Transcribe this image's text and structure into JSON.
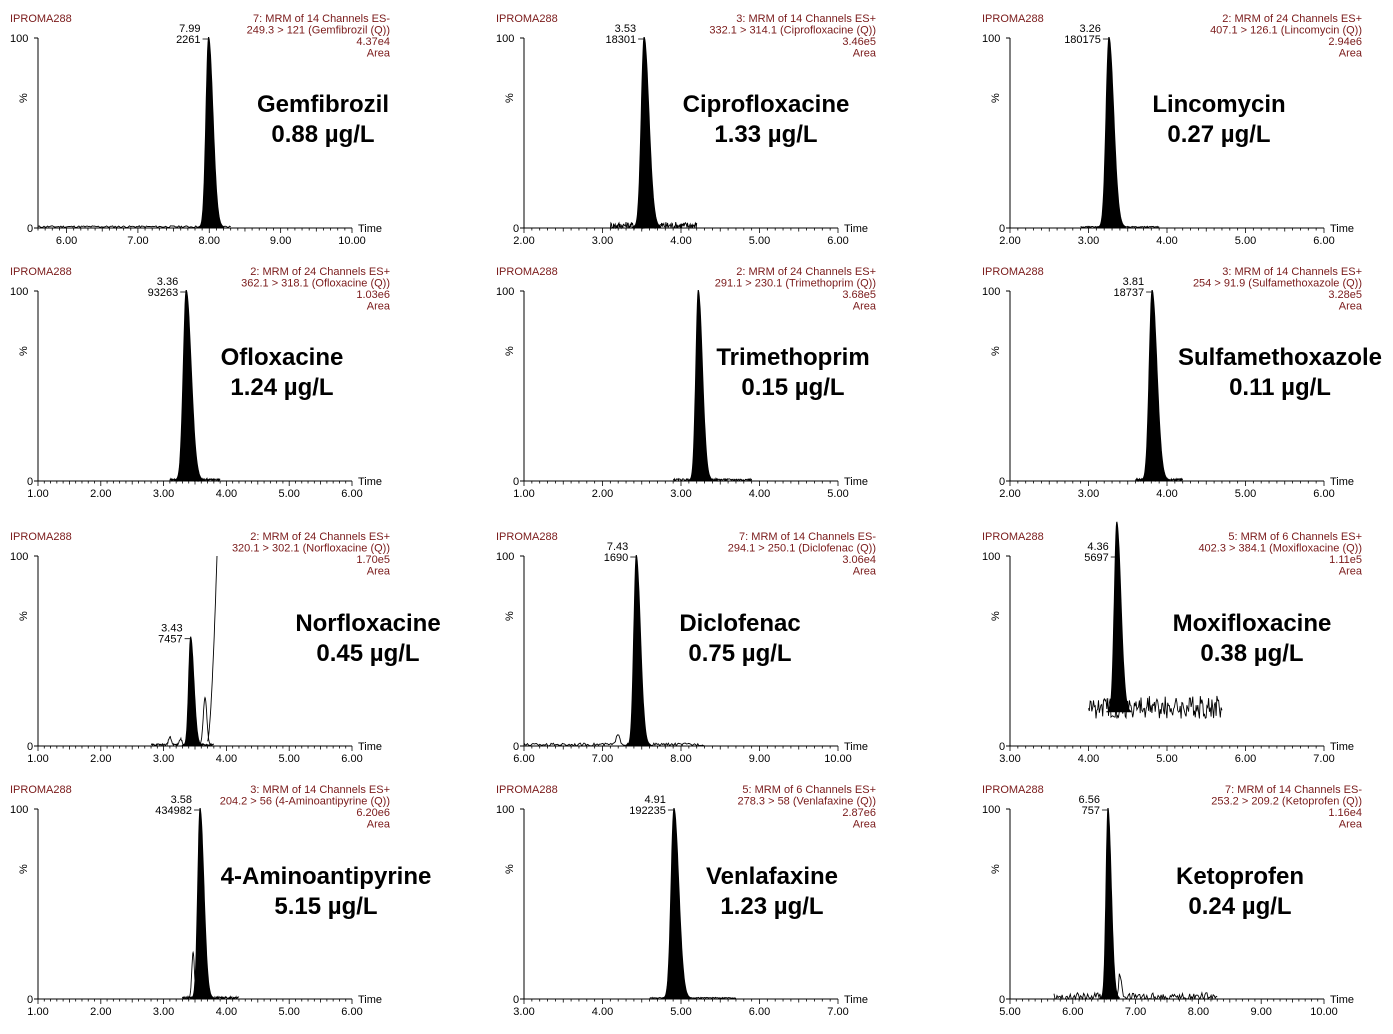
{
  "chart_data": [
    {
      "type": "line",
      "sample": "IPROMA288",
      "header": [
        "7: MRM of 14 Channels ES-",
        "249.3 > 121 (Gemfibrozil (Q))",
        "4.37e4",
        "Area"
      ],
      "compound": "Gemfibrozil",
      "concentration": "0.88 µg/L",
      "ylabel": "%",
      "xlabel": "Time",
      "y_max_label": "100",
      "y_min_label": "0",
      "xlim": [
        5.6,
        10.0
      ],
      "ticks": [
        "6.00",
        "7.00",
        "8.00",
        "9.00",
        "10.00"
      ],
      "peak": {
        "rt": 7.99,
        "rt_label": "7.99",
        "area_label": "2261",
        "height": 100,
        "width": 0.07
      },
      "trace": {
        "start": 5.6,
        "end": 8.3,
        "noise": 1,
        "bumps": []
      },
      "secondary_peaks": []
    },
    {
      "type": "line",
      "sample": "IPROMA288",
      "header": [
        "3: MRM of 14 Channels ES+",
        "332.1 > 314.1 (Ciprofloxacine (Q))",
        "3.46e5",
        "Area"
      ],
      "compound": "Ciprofloxacine",
      "concentration": "1.33 µg/L",
      "ylabel": "%",
      "xlabel": "Time",
      "y_max_label": "100",
      "y_min_label": "0",
      "xlim": [
        2.0,
        6.0
      ],
      "ticks": [
        "2.00",
        "3.00",
        "4.00",
        "5.00",
        "6.00"
      ],
      "peak": {
        "rt": 3.53,
        "rt_label": "3.53",
        "area_label": "18301",
        "height": 100,
        "width": 0.07
      },
      "trace": {
        "start": 3.1,
        "end": 4.2,
        "noise": 4,
        "bumps": []
      },
      "secondary_peaks": []
    },
    {
      "type": "line",
      "sample": "IPROMA288",
      "header": [
        "2: MRM of 24 Channels ES+",
        "407.1 > 126.1 (Lincomycin (Q))",
        "2.94e6",
        "Area"
      ],
      "compound": "Lincomycin",
      "concentration": "0.27 µg/L",
      "ylabel": "%",
      "xlabel": "Time",
      "y_max_label": "100",
      "y_min_label": "0",
      "xlim": [
        2.0,
        6.0
      ],
      "ticks": [
        "2.00",
        "3.00",
        "4.00",
        "5.00",
        "6.00"
      ],
      "peak": {
        "rt": 3.26,
        "rt_label": "3.26",
        "area_label": "180175",
        "height": 100,
        "width": 0.07
      },
      "trace": {
        "start": 2.9,
        "end": 3.9,
        "noise": 0.5,
        "bumps": []
      },
      "secondary_peaks": []
    },
    {
      "type": "line",
      "sample": "IPROMA288",
      "header": [
        "2: MRM of 24 Channels ES+",
        "362.1 > 318.1 (Ofloxacine (Q))",
        "1.03e6",
        "Area"
      ],
      "compound": "Ofloxacine",
      "concentration": "1.24 µg/L",
      "ylabel": "%",
      "xlabel": "Time",
      "y_max_label": "100",
      "y_min_label": "0",
      "xlim": [
        1.0,
        6.0
      ],
      "ticks": [
        "1.00",
        "2.00",
        "3.00",
        "4.00",
        "5.00",
        "6.00"
      ],
      "peak": {
        "rt": 3.36,
        "rt_label": "3.36",
        "area_label": "93263",
        "height": 100,
        "width": 0.09
      },
      "trace": {
        "start": 3.1,
        "end": 3.9,
        "noise": 1,
        "bumps": []
      },
      "secondary_peaks": []
    },
    {
      "type": "line",
      "sample": "IPROMA288",
      "header": [
        "2: MRM of 24 Channels ES+",
        "291.1 > 230.1 (Trimethoprim (Q))",
        "3.68e5",
        "Area"
      ],
      "compound": "Trimethoprim",
      "concentration": "0.15 µg/L",
      "ylabel": "%",
      "xlabel": "Time",
      "y_max_label": "100",
      "y_min_label": "0",
      "xlim": [
        1.0,
        5.0
      ],
      "ticks": [
        "1.00",
        "2.00",
        "3.00",
        "4.00",
        "5.00"
      ],
      "peak": {
        "rt": 3.22,
        "rt_label": "",
        "area_label": "",
        "height": 100,
        "width": 0.06
      },
      "trace": {
        "start": 2.9,
        "end": 3.9,
        "noise": 1,
        "bumps": []
      },
      "secondary_peaks": []
    },
    {
      "type": "line",
      "sample": "IPROMA288",
      "header": [
        "3: MRM of 14 Channels ES+",
        "254 > 91.9 (Sulfamethoxazole (Q))",
        "3.28e5",
        "Area"
      ],
      "compound": "Sulfamethoxazole",
      "concentration": "0.11 µg/L",
      "ylabel": "%",
      "xlabel": "Time",
      "y_max_label": "100",
      "y_min_label": "0",
      "xlim": [
        2.0,
        6.0
      ],
      "ticks": [
        "2.00",
        "3.00",
        "4.00",
        "5.00",
        "6.00"
      ],
      "peak": {
        "rt": 3.81,
        "rt_label": "3.81",
        "area_label": "18737",
        "height": 100,
        "width": 0.07
      },
      "trace": {
        "start": 3.6,
        "end": 4.2,
        "noise": 1,
        "bumps": []
      },
      "secondary_peaks": []
    },
    {
      "type": "line",
      "sample": "IPROMA288",
      "header": [
        "2: MRM of 24 Channels ES+",
        "320.1 > 302.1 (Norfloxacine (Q))",
        "1.70e5",
        "Area"
      ],
      "compound": "Norfloxacine",
      "concentration": "0.45 µg/L",
      "ylabel": "%",
      "xlabel": "Time",
      "y_max_label": "100",
      "y_min_label": "0",
      "xlim": [
        1.0,
        6.0
      ],
      "ticks": [
        "1.00",
        "2.00",
        "3.00",
        "4.00",
        "5.00",
        "6.00"
      ],
      "peak": {
        "rt": 3.43,
        "rt_label": "3.43",
        "area_label": "7457",
        "height": 57,
        "width": 0.06
      },
      "trace": {
        "start": 2.8,
        "end": 3.8,
        "noise": 1,
        "bumps": [
          {
            "x": 3.1,
            "h": 4
          },
          {
            "x": 3.27,
            "h": 3
          }
        ]
      },
      "secondary_peaks": [
        {
          "x": 3.66,
          "h": 25,
          "w": 0.04
        }
      ],
      "rise": {
        "start": 3.7,
        "end": 3.85,
        "to": 100
      }
    },
    {
      "type": "line",
      "sample": "IPROMA288",
      "header": [
        "7: MRM of 14 Channels ES-",
        "294.1 > 250.1 (Diclofenac (Q))",
        "3.06e4",
        "Area"
      ],
      "compound": "Diclofenac",
      "concentration": "0.75 µg/L",
      "ylabel": "%",
      "xlabel": "Time",
      "y_max_label": "100",
      "y_min_label": "0",
      "xlim": [
        6.0,
        10.0
      ],
      "ticks": [
        "6.00",
        "7.00",
        "8.00",
        "9.00",
        "10.00"
      ],
      "peak": {
        "rt": 7.43,
        "rt_label": "7.43",
        "area_label": "1690",
        "height": 100,
        "width": 0.06
      },
      "trace": {
        "start": 6.0,
        "end": 8.3,
        "noise": 1.5,
        "bumps": [
          {
            "x": 7.2,
            "h": 6
          }
        ]
      },
      "secondary_peaks": []
    },
    {
      "type": "line",
      "sample": "IPROMA288",
      "header": [
        "5: MRM of 6 Channels ES+",
        "402.3 > 384.1 (Moxifloxacine (Q))",
        "1.11e5",
        "Area"
      ],
      "compound": "Moxifloxacine",
      "concentration": "0.38 µg/L",
      "ylabel": "%",
      "xlabel": "Time",
      "y_max_label": "100",
      "y_min_label": "0",
      "xlim": [
        3.0,
        7.0
      ],
      "ticks": [
        "3.00",
        "4.00",
        "5.00",
        "6.00",
        "7.00"
      ],
      "peak": {
        "rt": 4.36,
        "rt_label": "4.36",
        "area_label": "5697",
        "height": 100,
        "width": 0.06
      },
      "trace": {
        "start": 4.0,
        "end": 5.7,
        "noise": 12,
        "baseline": 18
      },
      "secondary_peaks": []
    },
    {
      "type": "line",
      "sample": "IPROMA288",
      "header": [
        "3: MRM of 14 Channels ES+",
        "204.2 > 56 (4-Aminoantipyrine (Q))",
        "6.20e6",
        "Area"
      ],
      "compound": "4-Aminoantipyrine",
      "concentration": "5.15 µg/L",
      "ylabel": "%",
      "xlabel": "Time",
      "y_max_label": "100",
      "y_min_label": "0",
      "xlim": [
        1.0,
        6.0
      ],
      "ticks": [
        "1.00",
        "2.00",
        "3.00",
        "4.00",
        "5.00",
        "6.00"
      ],
      "peak": {
        "rt": 3.58,
        "rt_label": "3.58",
        "area_label": "434982",
        "height": 100,
        "width": 0.07
      },
      "trace": {
        "start": 3.3,
        "end": 4.2,
        "noise": 1,
        "bumps": []
      },
      "secondary_peaks": [
        {
          "x": 3.47,
          "h": 24,
          "w": 0.03
        }
      ]
    },
    {
      "type": "line",
      "sample": "IPROMA288",
      "header": [
        "5: MRM of 6 Channels ES+",
        "278.3 > 58 (Venlafaxine (Q))",
        "2.87e6",
        "Area"
      ],
      "compound": "Venlafaxine",
      "concentration": "1.23 µg/L",
      "ylabel": "%",
      "xlabel": "Time",
      "y_max_label": "100",
      "y_min_label": "0",
      "xlim": [
        3.0,
        7.0
      ],
      "ticks": [
        "3.00",
        "4.00",
        "5.00",
        "6.00",
        "7.00"
      ],
      "peak": {
        "rt": 4.91,
        "rt_label": "4.91",
        "area_label": "192235",
        "height": 100,
        "width": 0.07
      },
      "trace": {
        "start": 4.6,
        "end": 5.7,
        "noise": 0.5,
        "bumps": []
      },
      "secondary_peaks": []
    },
    {
      "type": "line",
      "sample": "IPROMA288",
      "header": [
        "7: MRM of 14 Channels ES-",
        "253.2 > 209.2 (Ketoprofen (Q))",
        "1.16e4",
        "Area"
      ],
      "compound": "Ketoprofen",
      "concentration": "0.24 µg/L",
      "ylabel": "%",
      "xlabel": "Time",
      "y_max_label": "100",
      "y_min_label": "0",
      "xlim": [
        5.0,
        10.0
      ],
      "ticks": [
        "5.00",
        "6.00",
        "7.00",
        "8.00",
        "9.00",
        "10.00"
      ],
      "peak": {
        "rt": 6.56,
        "rt_label": "6.56",
        "area_label": "757",
        "height": 100,
        "width": 0.06
      },
      "trace": {
        "start": 5.7,
        "end": 8.3,
        "noise": 4,
        "bumps": [
          {
            "x": 6.75,
            "h": 12
          }
        ]
      },
      "secondary_peaks": []
    }
  ]
}
